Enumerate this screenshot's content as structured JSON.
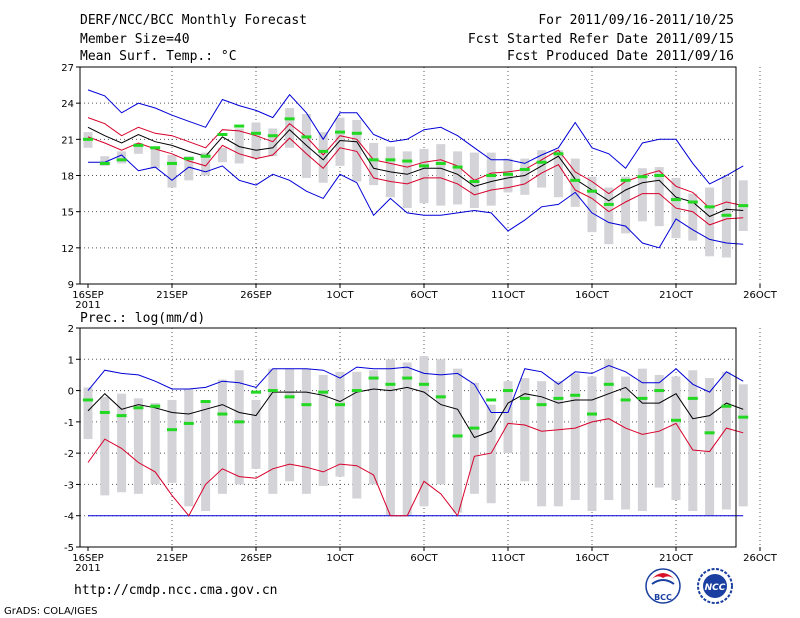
{
  "header": {
    "title": "DERF/NCC/BCC Monthly Forecast",
    "member_size": "Member Size=40",
    "variable_top": "Mean Surf. Temp.: °C",
    "forecast_for": "For 2011/09/16-2011/10/25",
    "fcst_started": "Fcst Started Refer Date 2011/09/15",
    "fcst_produced": "Fcst Produced Date 2011/09/16"
  },
  "footer": {
    "url": "http://cmdp.ncc.cma.gov.cn",
    "grads_credit": "GrADS: COLA/IGES",
    "logo_bcc": "BCC",
    "logo_ncc": "NCC"
  },
  "colors": {
    "box": "#d3d3d8",
    "median": "#22d822",
    "mean": "#000000",
    "spread": "#d8002a",
    "envelope": "#0000d8",
    "grid": "#555555"
  },
  "chart_data": [
    {
      "type": "box-and-line",
      "title": "Mean Surf. Temp.: °C",
      "ylim": [
        9,
        27
      ],
      "yticks": [
        9,
        12,
        15,
        18,
        21,
        24,
        27
      ],
      "xticks": [
        "16SEP",
        "21SEP",
        "26SEP",
        "1OCT",
        "6OCT",
        "11OCT",
        "16OCT",
        "21OCT",
        "26OCT"
      ],
      "xticks_display": [
        "16SEP",
        "21SEP",
        "26SEP",
        "1OCT",
        "6OCT",
        "11OCT",
        "16OCT",
        "21OCT",
        "26OCT"
      ],
      "xyear": "2011",
      "days": 40,
      "series": [
        {
          "name": "ensemble max",
          "values": [
            25.1,
            24.6,
            23.2,
            24.0,
            23.6,
            23.0,
            22.5,
            22.0,
            24.3,
            23.8,
            23.4,
            22.8,
            24.7,
            23.2,
            21.0,
            23.2,
            23.2,
            21.4,
            20.8,
            21.0,
            21.8,
            22.0,
            21.3,
            20.3,
            19.3,
            19.3,
            19.0,
            19.7,
            20.3,
            22.4,
            20.3,
            19.8,
            18.6,
            20.7,
            21.0,
            21.0,
            19.0,
            17.3,
            18.0,
            18.8
          ]
        },
        {
          "name": "mean+spread",
          "values": [
            22.8,
            22.3,
            21.3,
            22.0,
            21.5,
            21.3,
            20.8,
            20.3,
            21.8,
            21.7,
            21.3,
            20.8,
            22.3,
            21.2,
            19.7,
            21.3,
            21.0,
            19.3,
            19.0,
            18.7,
            19.1,
            19.3,
            18.8,
            17.6,
            18.2,
            18.3,
            18.5,
            19.3,
            20.1,
            18.3,
            17.5,
            16.5,
            17.5,
            18.0,
            18.4,
            17.1,
            16.6,
            15.3,
            15.8,
            15.5
          ]
        },
        {
          "name": "mean",
          "values": [
            22.0,
            21.3,
            20.7,
            21.4,
            20.8,
            20.5,
            20.0,
            19.6,
            21.2,
            20.4,
            20.1,
            20.3,
            21.8,
            20.5,
            19.3,
            20.9,
            20.8,
            18.6,
            18.3,
            18.1,
            18.6,
            18.6,
            18.1,
            17.1,
            17.5,
            17.8,
            18.0,
            18.8,
            19.6,
            17.7,
            16.8,
            15.9,
            16.8,
            17.4,
            17.6,
            16.2,
            15.8,
            14.6,
            15.2,
            15.1
          ]
        },
        {
          "name": "mean-spread",
          "values": [
            21.2,
            20.7,
            20.1,
            20.7,
            20.2,
            19.8,
            19.2,
            18.8,
            20.5,
            19.8,
            19.4,
            19.7,
            21.1,
            19.8,
            18.6,
            20.3,
            20.0,
            17.8,
            17.5,
            17.3,
            17.8,
            17.8,
            17.3,
            16.4,
            16.8,
            17.0,
            17.3,
            18.2,
            18.9,
            16.8,
            16.1,
            15.0,
            15.8,
            16.5,
            16.5,
            15.3,
            15.0,
            13.9,
            14.4,
            14.5
          ]
        },
        {
          "name": "ensemble min",
          "values": [
            19.1,
            19.1,
            19.7,
            18.4,
            18.7,
            17.6,
            18.7,
            18.3,
            18.8,
            17.6,
            17.2,
            18.1,
            17.6,
            16.7,
            16.1,
            18.1,
            17.4,
            14.7,
            16.1,
            14.9,
            14.7,
            14.7,
            14.9,
            15.1,
            14.9,
            13.4,
            14.3,
            15.4,
            15.6,
            16.6,
            14.9,
            14.1,
            13.8,
            12.4,
            12.0,
            14.4,
            13.5,
            12.7,
            12.4,
            12.3
          ]
        },
        {
          "name": "box high",
          "values": [
            21.6,
            19.6,
            20.0,
            20.7,
            20.4,
            19.7,
            19.6,
            19.9,
            20.3,
            21.9,
            22.4,
            21.9,
            23.6,
            23.1,
            21.6,
            22.8,
            22.6,
            20.7,
            20.4,
            20.0,
            20.2,
            20.6,
            20.0,
            19.9,
            19.9,
            19.4,
            19.4,
            20.1,
            20.1,
            19.4,
            17.9,
            17.0,
            17.9,
            18.6,
            18.7,
            17.8,
            16.5,
            17.0,
            17.9,
            17.6
          ]
        },
        {
          "name": "box low",
          "values": [
            20.3,
            18.8,
            19.0,
            19.8,
            18.6,
            17.0,
            17.6,
            18.0,
            19.1,
            19.0,
            19.4,
            19.6,
            20.3,
            17.8,
            17.4,
            18.8,
            17.5,
            17.2,
            16.2,
            15.3,
            15.7,
            15.5,
            15.6,
            15.3,
            15.5,
            16.6,
            16.4,
            17.0,
            16.2,
            15.4,
            13.3,
            12.3,
            13.2,
            14.2,
            13.8,
            12.8,
            12.6,
            11.3,
            11.2,
            13.4
          ]
        },
        {
          "name": "median",
          "values": [
            21.0,
            19.0,
            19.3,
            20.5,
            20.3,
            19.0,
            19.4,
            19.6,
            21.4,
            22.1,
            21.5,
            21.3,
            22.7,
            21.2,
            20.0,
            21.6,
            21.5,
            19.3,
            19.3,
            19.2,
            18.8,
            19.0,
            18.7,
            17.5,
            18.0,
            18.1,
            18.5,
            19.1,
            19.8,
            17.6,
            16.7,
            15.6,
            17.6,
            17.9,
            18.0,
            16.0,
            15.8,
            15.4,
            14.7,
            15.5
          ]
        }
      ]
    },
    {
      "type": "box-and-line",
      "title": "Prec.: log(mm/d)",
      "ylim": [
        -5,
        2
      ],
      "yticks": [
        -5,
        -4,
        -3,
        -2,
        -1,
        0,
        1,
        2
      ],
      "xticks": [
        "16SEP",
        "21SEP",
        "26SEP",
        "1OCT",
        "6OCT",
        "11OCT",
        "16OCT",
        "21OCT",
        "26OCT"
      ],
      "xticks_display": [
        "16SEP",
        "21SEP",
        "26SEP",
        "1OCT",
        "6OCT",
        "11OCT",
        "16OCT",
        "21OCT",
        "26OCT"
      ],
      "xyear": "2011",
      "days": 40,
      "series": [
        {
          "name": "ensemble max",
          "values": [
            0.0,
            0.65,
            0.55,
            0.5,
            0.3,
            0.05,
            0.05,
            0.1,
            0.3,
            0.25,
            0.1,
            0.7,
            0.7,
            0.7,
            0.65,
            0.4,
            0.75,
            0.7,
            0.7,
            0.75,
            0.55,
            0.5,
            0.55,
            0.2,
            -0.7,
            -0.7,
            0.7,
            0.6,
            0.2,
            0.6,
            0.55,
            0.8,
            0.6,
            0.25,
            0.25,
            0.7,
            0.2,
            -0.05,
            0.6,
            0.3
          ]
        },
        {
          "name": "mean",
          "values": [
            -0.65,
            -0.1,
            -0.6,
            -0.45,
            -0.55,
            -0.7,
            -0.75,
            -0.6,
            -0.45,
            -0.7,
            -0.8,
            -0.05,
            -0.05,
            -0.05,
            -0.15,
            -0.35,
            -0.05,
            0.05,
            0.0,
            0.1,
            -0.05,
            -0.45,
            -0.6,
            -1.5,
            -1.3,
            -0.4,
            -0.1,
            -0.2,
            -0.4,
            -0.3,
            -0.3,
            -0.1,
            0.1,
            -0.4,
            -0.4,
            -0.1,
            -0.9,
            -0.8,
            -0.4,
            -0.6
          ]
        },
        {
          "name": "mean-spread",
          "values": [
            -2.3,
            -1.55,
            -1.85,
            -2.3,
            -2.6,
            -3.35,
            -4.0,
            -3.0,
            -2.5,
            -2.75,
            -2.8,
            -2.5,
            -2.35,
            -2.45,
            -2.6,
            -2.35,
            -2.4,
            -2.7,
            -4.0,
            -4.0,
            -2.9,
            -3.3,
            -4.0,
            -2.1,
            -2.0,
            -1.05,
            -1.1,
            -1.3,
            -1.25,
            -1.2,
            -1.0,
            -0.9,
            -1.2,
            -1.4,
            -1.3,
            -1.05,
            -1.9,
            -1.95,
            -1.2,
            -1.35
          ]
        },
        {
          "name": "ensemble min",
          "values": [
            -4.0,
            -4.0,
            -4.0,
            -4.0,
            -4.0,
            -4.0,
            -4.0,
            -4.0,
            -4.0,
            -4.0,
            -4.0,
            -4.0,
            -4.0,
            -4.0,
            -4.0,
            -4.0,
            -4.0,
            -4.0,
            -4.0,
            -4.0,
            -4.0,
            -4.0,
            -4.0,
            -4.0,
            -4.0,
            -4.0,
            -4.0,
            -4.0,
            -4.0,
            -4.0,
            -4.0,
            -4.0,
            -4.0,
            -4.0,
            -4.0,
            -4.0,
            -4.0,
            -4.0,
            -4.0,
            -4.0
          ]
        },
        {
          "name": "box high",
          "values": [
            0.1,
            -0.2,
            -0.1,
            -0.25,
            -0.4,
            -0.3,
            0.05,
            -0.3,
            0.35,
            0.65,
            -0.3,
            0.7,
            0.7,
            0.7,
            0.5,
            0.6,
            0.6,
            0.65,
            1.0,
            0.9,
            1.1,
            1.0,
            0.7,
            0.25,
            -0.45,
            0.3,
            0.4,
            0.3,
            0.3,
            0.55,
            0.45,
            1.0,
            0.45,
            0.7,
            0.5,
            0.45,
            0.65,
            0.4,
            0.6,
            0.2
          ]
        },
        {
          "name": "box low",
          "values": [
            -1.55,
            -3.35,
            -3.25,
            -3.3,
            -3.0,
            -2.95,
            -3.7,
            -3.85,
            -3.3,
            -3.0,
            -2.5,
            -3.3,
            -2.9,
            -3.3,
            -3.05,
            -2.75,
            -3.45,
            -3.0,
            -4.0,
            -4.0,
            -3.7,
            -3.0,
            -3.9,
            -3.3,
            -3.6,
            -2.0,
            -2.9,
            -3.7,
            -3.7,
            -3.5,
            -3.85,
            -3.5,
            -3.8,
            -3.85,
            -3.1,
            -3.5,
            -3.85,
            -4.0,
            -3.8,
            -3.7
          ]
        },
        {
          "name": "median",
          "values": [
            -0.3,
            -0.7,
            -0.8,
            -0.55,
            -0.5,
            -1.25,
            -1.05,
            -0.35,
            -0.75,
            -1.0,
            -0.05,
            0.0,
            -0.2,
            -0.45,
            -0.05,
            -0.45,
            0.0,
            0.4,
            0.2,
            0.4,
            0.2,
            -0.2,
            -1.45,
            -1.2,
            -0.3,
            0.0,
            -0.25,
            -0.45,
            -0.25,
            -0.15,
            -0.75,
            0.2,
            -0.3,
            -0.25,
            0.0,
            -0.95,
            -0.25,
            -1.35,
            -0.5,
            -0.85
          ]
        }
      ]
    }
  ]
}
